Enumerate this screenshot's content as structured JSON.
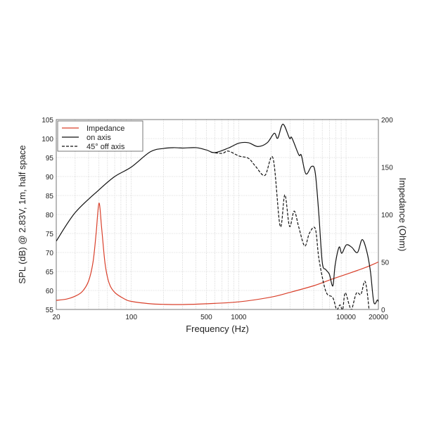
{
  "chart_data": {
    "type": "line",
    "xlabel": "Frequency (Hz)",
    "ylabel": "SPL (dB) @ 2.83V, 1m, half space",
    "y2label": "Impedance (Ohm)",
    "xscale": "log",
    "xlim": [
      20,
      20000
    ],
    "ylim": [
      55,
      105
    ],
    "y2lim": [
      0,
      200
    ],
    "grid": true,
    "legend_position": "top-left",
    "x_tick_labels": [
      "20",
      "100",
      "500",
      "1000",
      "10000",
      "20000"
    ],
    "x_ticks": [
      20,
      100,
      500,
      1000,
      10000,
      20000
    ],
    "y_ticks": [
      55,
      60,
      65,
      70,
      75,
      80,
      85,
      90,
      95,
      100,
      105
    ],
    "y2_ticks": [
      0,
      50,
      100,
      150,
      200
    ],
    "series": [
      {
        "name": "Impedance",
        "axis": "right",
        "color": "#d9402b",
        "dash": "solid",
        "x": [
          20,
          25,
          30,
          35,
          40,
          44,
          47,
          50,
          53,
          57,
          62,
          70,
          85,
          100,
          150,
          200,
          300,
          500,
          1000,
          2000,
          3000,
          5000,
          7000,
          10000,
          15000,
          20000
        ],
        "y": [
          9.6,
          11,
          14,
          19,
          30,
          50,
          80,
          112,
          85,
          48,
          28,
          18,
          11.5,
          8.5,
          6,
          5.4,
          5.2,
          6,
          8,
          13,
          18,
          25,
          31,
          37,
          44,
          50
        ]
      },
      {
        "name": "on axis",
        "axis": "left",
        "color": "#111111",
        "dash": "solid",
        "x": [
          20,
          30,
          50,
          70,
          100,
          150,
          200,
          250,
          300,
          400,
          500,
          600,
          800,
          1009,
          1233,
          1508,
          1845,
          2143,
          2312,
          2583,
          2973,
          3126,
          3632,
          3832,
          4226,
          4786,
          5163,
          5570,
          6004,
          6476,
          6985,
          7530,
          7910,
          8610,
          9130,
          10050,
          11270,
          12770,
          14130,
          15620,
          16880,
          18140,
          19580,
          20000
        ],
        "y": [
          73,
          80.5,
          86.5,
          90,
          92.5,
          96.5,
          97.4,
          97.6,
          97.5,
          97.6,
          97,
          96.3,
          97.5,
          98.8,
          98.9,
          97.9,
          98.9,
          101.4,
          100.1,
          103.8,
          100.1,
          100.2,
          95.7,
          95.6,
          90.7,
          92.7,
          91,
          80.3,
          67.4,
          65.5,
          64.3,
          61.2,
          66.7,
          71.4,
          69.8,
          72,
          71.4,
          70,
          73.4,
          70.2,
          64.9,
          56.9,
          57.5,
          57
        ]
      },
      {
        "name": "45° off axis",
        "axis": "left",
        "color": "#111111",
        "dash": "dashed",
        "x": [
          550,
          700,
          800,
          1009,
          1233,
          1435,
          1754,
          2089,
          2433,
          2690,
          2973,
          3288,
          3632,
          4120,
          4560,
          5163,
          5570,
          6190,
          6690,
          7530,
          8170,
          8780,
          9300,
          9800,
          10700,
          11270,
          12480,
          13750,
          14860,
          15620,
          16500
        ],
        "y": [
          96.4,
          96.1,
          96.7,
          95.4,
          94.8,
          92.7,
          90.3,
          94.8,
          76.9,
          85.2,
          76.9,
          80.9,
          76.6,
          71.7,
          75.1,
          76.3,
          68.6,
          61.8,
          59,
          58.1,
          55,
          56.2,
          55,
          59.4,
          56.2,
          55,
          59.3,
          59,
          62.4,
          60.2,
          54
        ]
      }
    ]
  }
}
